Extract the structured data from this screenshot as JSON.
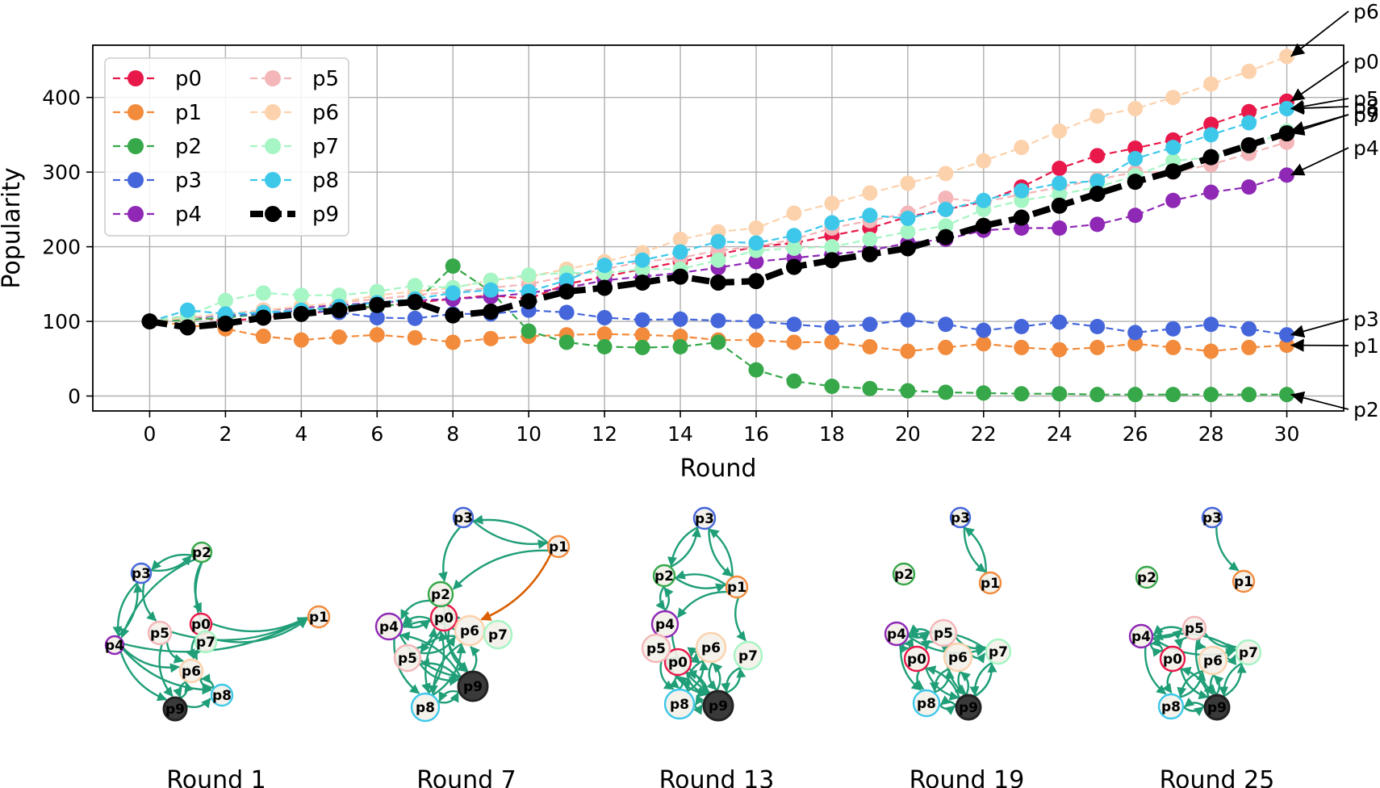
{
  "chart_data": [
    {
      "type": "line",
      "xlabel": "Round",
      "ylabel": "Popularity",
      "xlim": [
        -1.5,
        31.5
      ],
      "ylim": [
        -20,
        470
      ],
      "xticks": [
        0,
        2,
        4,
        6,
        8,
        10,
        12,
        14,
        16,
        18,
        20,
        22,
        24,
        26,
        28,
        30
      ],
      "xtick_labels": [
        "0",
        "2",
        "4",
        "6",
        "8",
        "10",
        "12",
        "14",
        "16",
        "18",
        "20",
        "22",
        "24",
        "26",
        "28",
        "30"
      ],
      "yticks": [
        0,
        100,
        200,
        300,
        400
      ],
      "ytick_labels": [
        "0",
        "100",
        "200",
        "300",
        "400"
      ],
      "grid": true,
      "legend": "top-left",
      "x": [
        0,
        1,
        2,
        3,
        4,
        5,
        6,
        7,
        8,
        9,
        10,
        11,
        12,
        13,
        14,
        15,
        16,
        17,
        18,
        19,
        20,
        21,
        22,
        23,
        24,
        25,
        26,
        27,
        28,
        29,
        30
      ],
      "series": [
        {
          "name": "p0",
          "color": "#e8194a",
          "dashed": true,
          "bold": false,
          "values": [
            100,
            108,
            100,
            105,
            110,
            115,
            120,
            125,
            130,
            135,
            130,
            150,
            160,
            170,
            180,
            190,
            200,
            205,
            215,
            225,
            240,
            250,
            260,
            280,
            305,
            322,
            332,
            343,
            364,
            381,
            395
          ]
        },
        {
          "name": "p1",
          "color": "#f28b3c",
          "dashed": true,
          "bold": false,
          "values": [
            100,
            95,
            90,
            80,
            75,
            79,
            82,
            78,
            72,
            77,
            80,
            82,
            83,
            82,
            80,
            75,
            75,
            72,
            72,
            66,
            60,
            65,
            70,
            65,
            62,
            65,
            70,
            65,
            60,
            65,
            68
          ]
        },
        {
          "name": "p2",
          "color": "#36a84a",
          "dashed": true,
          "bold": false,
          "values": [
            100,
            102,
            105,
            110,
            115,
            118,
            120,
            125,
            174,
            140,
            87,
            72,
            66,
            65,
            66,
            72,
            35,
            20,
            13,
            10,
            7,
            5,
            4,
            3,
            3,
            2,
            2,
            2,
            2,
            2,
            2
          ]
        },
        {
          "name": "p3",
          "color": "#4566db",
          "dashed": true,
          "bold": false,
          "values": [
            100,
            105,
            108,
            110,
            115,
            112,
            105,
            104,
            110,
            110,
            115,
            112,
            105,
            102,
            103,
            101,
            100,
            96,
            92,
            96,
            102,
            96,
            88,
            93,
            99,
            93,
            85,
            90,
            96,
            90,
            82
          ]
        },
        {
          "name": "p4",
          "color": "#8e28b5",
          "dashed": true,
          "bold": false,
          "values": [
            100,
            105,
            110,
            115,
            118,
            122,
            125,
            128,
            130,
            133,
            138,
            145,
            155,
            160,
            165,
            172,
            180,
            185,
            190,
            195,
            205,
            210,
            222,
            225,
            225,
            230,
            242,
            262,
            273,
            280,
            296
          ]
        },
        {
          "name": "p5",
          "color": "#f4b6b8",
          "dashed": true,
          "bold": false,
          "values": [
            100,
            105,
            110,
            115,
            120,
            125,
            130,
            135,
            140,
            145,
            150,
            160,
            170,
            180,
            185,
            195,
            200,
            210,
            225,
            235,
            245,
            265,
            260,
            270,
            280,
            290,
            300,
            300,
            310,
            325,
            340
          ]
        },
        {
          "name": "p6",
          "color": "#fcd2ad",
          "dashed": true,
          "bold": false,
          "values": [
            100,
            105,
            110,
            115,
            120,
            125,
            135,
            140,
            145,
            155,
            160,
            170,
            180,
            192,
            210,
            220,
            225,
            245,
            258,
            272,
            285,
            298,
            315,
            333,
            355,
            375,
            385,
            400,
            418,
            435,
            455
          ]
        },
        {
          "name": "p7",
          "color": "#a6f5c4",
          "dashed": true,
          "bold": false,
          "values": [
            100,
            108,
            128,
            138,
            135,
            135,
            140,
            148,
            145,
            155,
            162,
            165,
            165,
            170,
            170,
            182,
            195,
            198,
            200,
            210,
            220,
            228,
            250,
            262,
            270,
            280,
            295,
            315,
            320,
            335,
            355
          ]
        },
        {
          "name": "p8",
          "color": "#3dc8ea",
          "dashed": true,
          "bold": false,
          "values": [
            100,
            115,
            110,
            112,
            115,
            120,
            125,
            130,
            138,
            142,
            140,
            155,
            175,
            182,
            193,
            207,
            205,
            215,
            232,
            242,
            238,
            250,
            262,
            275,
            285,
            288,
            318,
            333,
            350,
            366,
            385
          ]
        },
        {
          "name": "p9",
          "color": "#000000",
          "dashed": true,
          "bold": true,
          "values": [
            100,
            92,
            97,
            105,
            110,
            115,
            122,
            126,
            108,
            113,
            127,
            140,
            145,
            152,
            160,
            152,
            154,
            173,
            182,
            190,
            198,
            213,
            228,
            239,
            255,
            271,
            287,
            301,
            320,
            336,
            352
          ]
        }
      ],
      "annotations": [
        {
          "label": "p6",
          "x": 30,
          "y": 455
        },
        {
          "label": "p0",
          "x": 30,
          "y": 395
        },
        {
          "label": "p5",
          "x": 30,
          "y": 385
        },
        {
          "label": "p8",
          "x": 30,
          "y": 385
        },
        {
          "label": "p7",
          "x": 30,
          "y": 355
        },
        {
          "label": "p9",
          "x": 30,
          "y": 352
        },
        {
          "label": "p4",
          "x": 30,
          "y": 296
        },
        {
          "label": "p3",
          "x": 30,
          "y": 82
        },
        {
          "label": "p1",
          "x": 30,
          "y": 68
        },
        {
          "label": "p2",
          "x": 30,
          "y": 2
        }
      ]
    },
    {
      "type": "network",
      "node_labels": [
        "p0",
        "p1",
        "p2",
        "p3",
        "p4",
        "p5",
        "p6",
        "p7",
        "p8",
        "p9"
      ],
      "node_colors": [
        "#e8194a",
        "#f28b3c",
        "#36a84a",
        "#4566db",
        "#8e28b5",
        "#f4b6b8",
        "#fcd2ad",
        "#a6f5c4",
        "#3dc8ea",
        "#222222"
      ],
      "edge_color": "#1f9e78",
      "highlight_edge_color": "#d95f02",
      "panels": [
        {
          "title": "Round 1"
        },
        {
          "title": "Round 7"
        },
        {
          "title": "Round 13"
        },
        {
          "title": "Round 19"
        },
        {
          "title": "Round 25"
        }
      ]
    }
  ]
}
